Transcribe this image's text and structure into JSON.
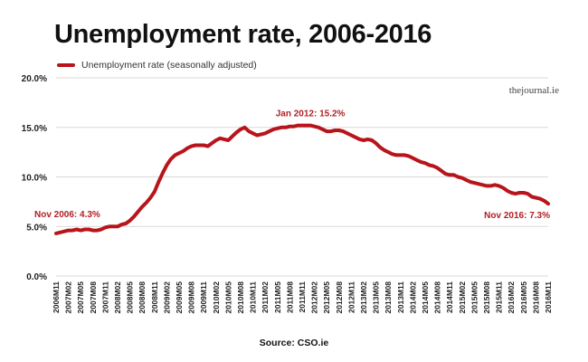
{
  "title": "Unemployment rate, 2006-2016",
  "source": "Source: CSO.ie",
  "watermark": "thejournal.ie",
  "colors": {
    "series": "#b8151b",
    "annotation": "#b01f24",
    "grid": "#d9d9d9",
    "text": "#222222"
  },
  "chart_data": {
    "type": "line",
    "series": [
      {
        "name": "Unemployment rate (seasonally adjusted)",
        "x": [
          "2006M11",
          "2006M12",
          "2007M01",
          "2007M02",
          "2007M03",
          "2007M04",
          "2007M05",
          "2007M06",
          "2007M07",
          "2007M08",
          "2007M09",
          "2007M10",
          "2007M11",
          "2007M12",
          "2008M01",
          "2008M02",
          "2008M03",
          "2008M04",
          "2008M05",
          "2008M06",
          "2008M07",
          "2008M08",
          "2008M09",
          "2008M10",
          "2008M11",
          "2008M12",
          "2009M01",
          "2009M02",
          "2009M03",
          "2009M04",
          "2009M05",
          "2009M06",
          "2009M07",
          "2009M08",
          "2009M09",
          "2009M10",
          "2009M11",
          "2009M12",
          "2010M01",
          "2010M02",
          "2010M03",
          "2010M04",
          "2010M05",
          "2010M06",
          "2010M07",
          "2010M08",
          "2010M09",
          "2010M10",
          "2010M11",
          "2010M12",
          "2011M01",
          "2011M02",
          "2011M03",
          "2011M04",
          "2011M05",
          "2011M06",
          "2011M07",
          "2011M08",
          "2011M09",
          "2011M10",
          "2011M11",
          "2011M12",
          "2012M01",
          "2012M02",
          "2012M03",
          "2012M04",
          "2012M05",
          "2012M06",
          "2012M07",
          "2012M08",
          "2012M09",
          "2012M10",
          "2012M11",
          "2012M12",
          "2013M01",
          "2013M02",
          "2013M03",
          "2013M04",
          "2013M05",
          "2013M06",
          "2013M07",
          "2013M08",
          "2013M09",
          "2013M10",
          "2013M11",
          "2013M12",
          "2014M01",
          "2014M02",
          "2014M03",
          "2014M04",
          "2014M05",
          "2014M06",
          "2014M07",
          "2014M08",
          "2014M09",
          "2014M10",
          "2014M11",
          "2014M12",
          "2015M01",
          "2015M02",
          "2015M03",
          "2015M04",
          "2015M05",
          "2015M06",
          "2015M07",
          "2015M08",
          "2015M09",
          "2015M10",
          "2015M11",
          "2015M12",
          "2016M01",
          "2016M02",
          "2016M03",
          "2016M04",
          "2016M05",
          "2016M06",
          "2016M07",
          "2016M08",
          "2016M09",
          "2016M10",
          "2016M11"
        ],
        "values": [
          4.3,
          4.4,
          4.5,
          4.6,
          4.6,
          4.7,
          4.6,
          4.7,
          4.7,
          4.6,
          4.6,
          4.7,
          4.9,
          5.0,
          5.0,
          5.0,
          5.2,
          5.3,
          5.6,
          6.0,
          6.5,
          7.0,
          7.4,
          7.9,
          8.5,
          9.5,
          10.4,
          11.2,
          11.8,
          12.2,
          12.4,
          12.6,
          12.9,
          13.1,
          13.2,
          13.2,
          13.2,
          13.1,
          13.4,
          13.7,
          13.9,
          13.8,
          13.7,
          14.1,
          14.5,
          14.8,
          15.0,
          14.6,
          14.4,
          14.2,
          14.3,
          14.4,
          14.6,
          14.8,
          14.9,
          15.0,
          15.0,
          15.1,
          15.1,
          15.2,
          15.2,
          15.2,
          15.2,
          15.1,
          15.0,
          14.8,
          14.6,
          14.6,
          14.7,
          14.7,
          14.6,
          14.4,
          14.2,
          14.0,
          13.8,
          13.7,
          13.8,
          13.7,
          13.4,
          13.0,
          12.7,
          12.5,
          12.3,
          12.2,
          12.2,
          12.2,
          12.1,
          11.9,
          11.7,
          11.5,
          11.4,
          11.2,
          11.1,
          10.9,
          10.6,
          10.3,
          10.2,
          10.2,
          10.0,
          9.9,
          9.7,
          9.5,
          9.4,
          9.3,
          9.2,
          9.1,
          9.1,
          9.2,
          9.1,
          8.9,
          8.6,
          8.4,
          8.3,
          8.4,
          8.4,
          8.3,
          8.0,
          7.9,
          7.8,
          7.6,
          7.3
        ]
      }
    ],
    "x_tick_labels": [
      "2006M11",
      "2007M02",
      "2007M05",
      "2007M08",
      "2007M11",
      "2008M02",
      "2008M05",
      "2008M08",
      "2008M11",
      "2009M02",
      "2009M05",
      "2009M08",
      "2009M11",
      "2010M02",
      "2010M05",
      "2010M08",
      "2010M11",
      "2011M02",
      "2011M05",
      "2011M08",
      "2011M11",
      "2012M02",
      "2012M05",
      "2012M08",
      "2012M11",
      "2013M02",
      "2013M05",
      "2013M08",
      "2013M11",
      "2014M02",
      "2014M05",
      "2014M08",
      "2014M11",
      "2015M02",
      "2015M05",
      "2015M08",
      "2015M11",
      "2016M02",
      "2016M05",
      "2016M08",
      "2016M11"
    ],
    "y_ticks": [
      0,
      5,
      10,
      15,
      20
    ],
    "y_tick_labels": [
      "0.0%",
      "5.0%",
      "10.0%",
      "15.0%",
      "20.0%"
    ],
    "ylim": [
      0,
      20
    ],
    "xlabel": "",
    "ylabel": "",
    "grid": true,
    "legend_position": "top-left",
    "annotations": [
      {
        "text": "Nov 2006: 4.3%",
        "x": "2006M11",
        "y": 4.3,
        "placement": "above-left"
      },
      {
        "text": "Jan 2012: 15.2%",
        "x": "2012M01",
        "y": 15.2,
        "placement": "above"
      },
      {
        "text": "Nov 2016: 7.3%",
        "x": "2016M11",
        "y": 7.3,
        "placement": "below-left"
      }
    ]
  }
}
